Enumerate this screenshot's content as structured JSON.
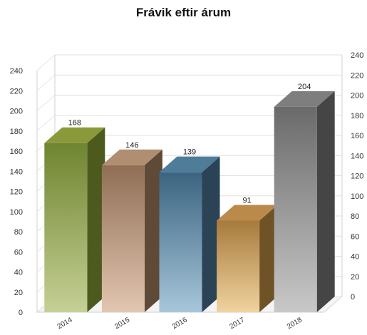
{
  "chart_data": {
    "type": "bar",
    "title": "Frávik eftir árum",
    "categories": [
      "2014",
      "2015",
      "2016",
      "2017",
      "2018"
    ],
    "values": [
      168,
      146,
      139,
      91,
      204
    ],
    "data_labels": [
      "168",
      "146",
      "139",
      "91",
      "204"
    ],
    "ylim": [
      0,
      240
    ],
    "yticks": [
      "0",
      "20",
      "40",
      "60",
      "80",
      "100",
      "120",
      "140",
      "160",
      "180",
      "200",
      "220",
      "240"
    ],
    "grid": true,
    "legend": "none",
    "three_d": true,
    "colors": [
      {
        "top": "#8a9a3a",
        "front_top": "#6f8430",
        "front_bottom": "#c5d095",
        "side": "#4d5a1d"
      },
      {
        "top": "#b08e72",
        "front_top": "#8f6e55",
        "front_bottom": "#e3c6b1",
        "side": "#5f4937"
      },
      {
        "top": "#4f7c99",
        "front_top": "#3b6480",
        "front_bottom": "#a7c6da",
        "side": "#2a4456"
      },
      {
        "top": "#b98a4a",
        "front_top": "#a77a3c",
        "front_bottom": "#f0d39f",
        "side": "#6f5225"
      },
      {
        "top": "#7e7e7e",
        "front_top": "#6a6a6a",
        "front_bottom": "#c8c8c8",
        "side": "#454545"
      }
    ]
  }
}
